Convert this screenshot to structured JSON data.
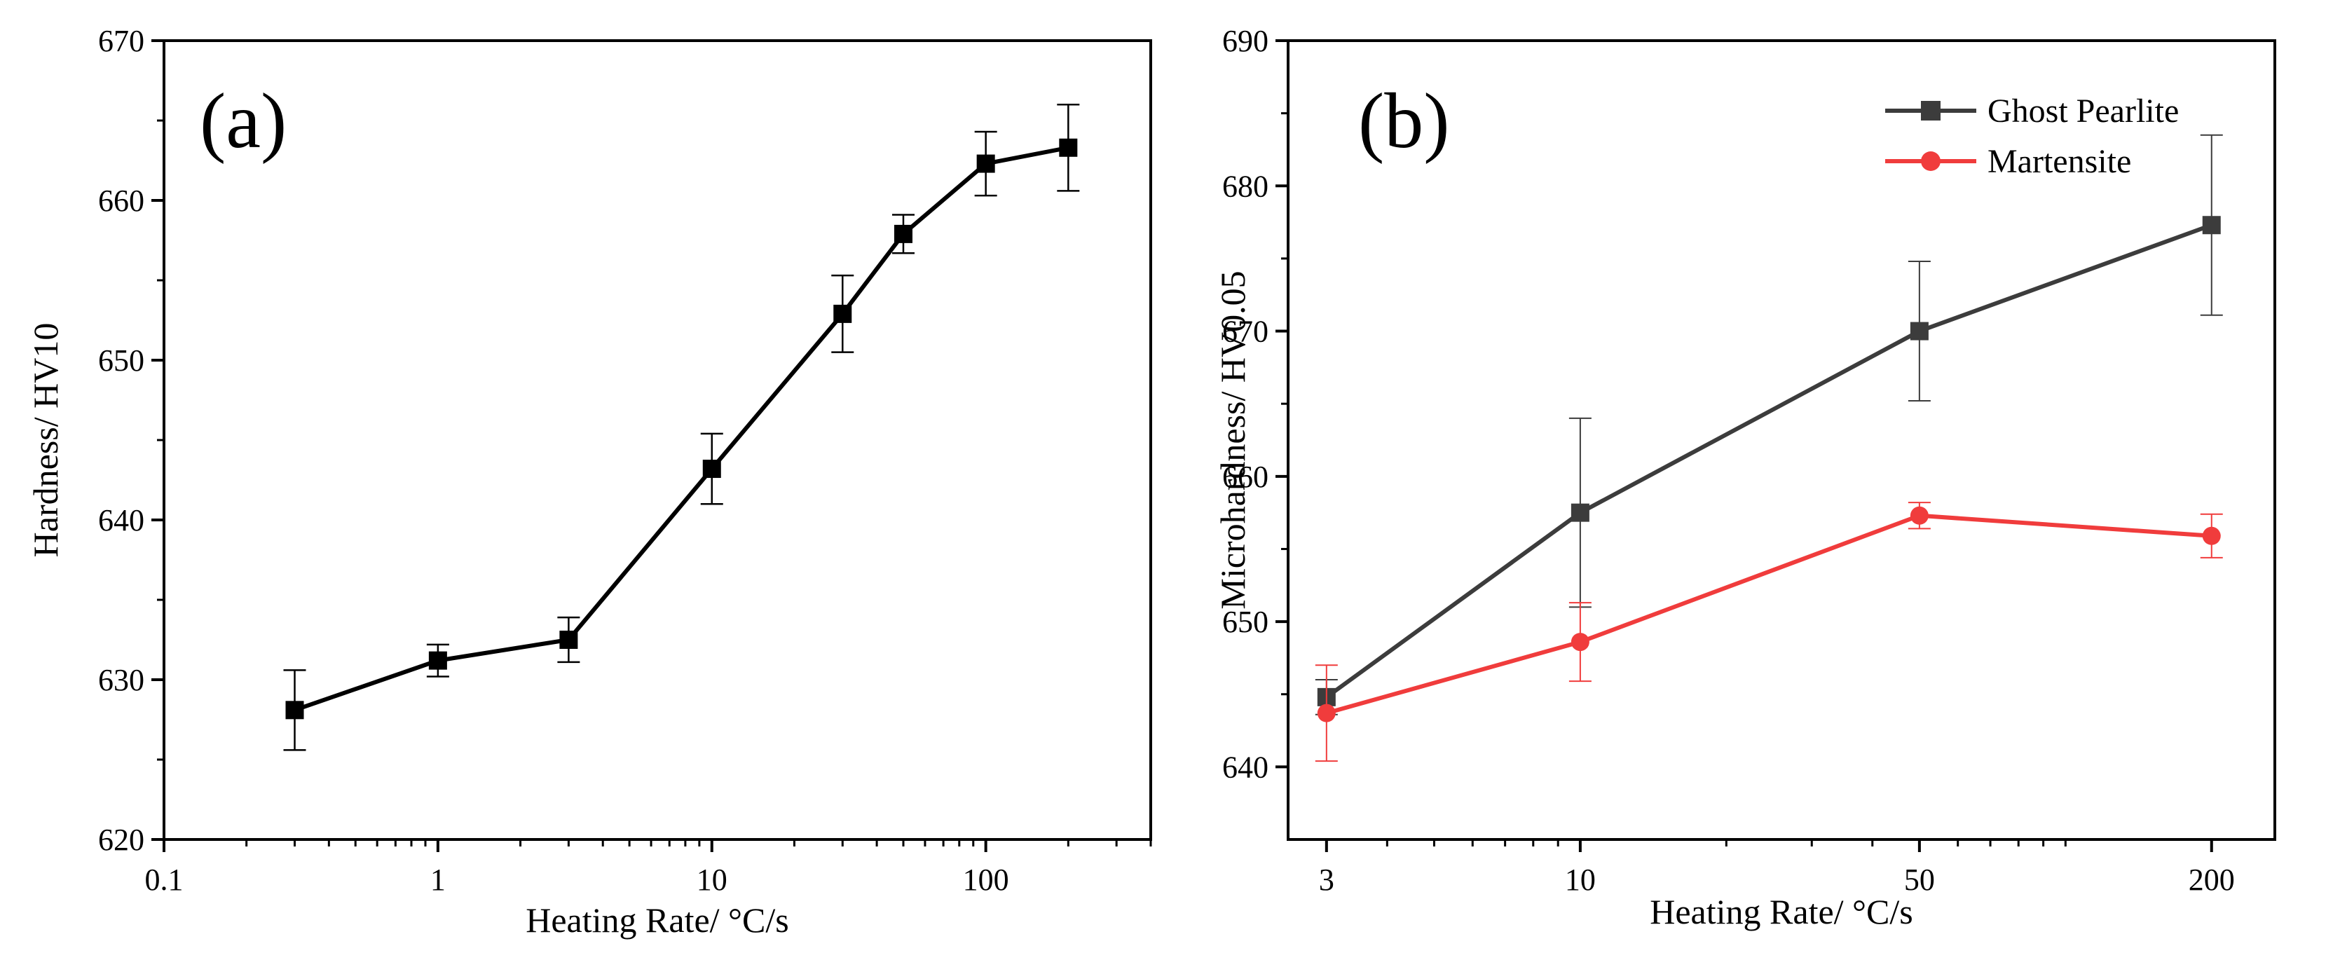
{
  "chart_data": [
    {
      "type": "line",
      "panel_label": "(a)",
      "xlabel": "Heating Rate/ °C/s",
      "ylabel": "Hardness/ HV10",
      "x_scale": "log",
      "xlim": [
        0.1,
        400
      ],
      "ylim": [
        620,
        670
      ],
      "x_ticks": [
        0.1,
        1,
        10,
        100
      ],
      "x_tick_labels": [
        "0.1",
        "1",
        "10",
        "100"
      ],
      "y_ticks": [
        620,
        630,
        640,
        650,
        660,
        670
      ],
      "y_tick_labels": [
        "620",
        "630",
        "640",
        "650",
        "660",
        "670"
      ],
      "series": [
        {
          "name": "Hardness",
          "color": "#000000",
          "marker": "square",
          "x": [
            0.3,
            1,
            3,
            10,
            30,
            50,
            100,
            200
          ],
          "y": [
            628.1,
            631.2,
            632.5,
            643.2,
            652.9,
            657.9,
            662.3,
            663.3
          ],
          "err": [
            2.5,
            1.0,
            1.4,
            2.2,
            2.4,
            1.2,
            2.0,
            2.7
          ]
        }
      ]
    },
    {
      "type": "line",
      "panel_label": "(b)",
      "xlabel": "Heating Rate/ °C/s",
      "ylabel": "Microhardness/ HV0.05",
      "x_scale": "log",
      "xlim": [
        2.5,
        270
      ],
      "ylim": [
        635,
        690
      ],
      "x_ticks": [
        3,
        10,
        50,
        200
      ],
      "x_tick_labels": [
        "3",
        "10",
        "50",
        "200"
      ],
      "y_ticks": [
        640,
        650,
        660,
        670,
        680,
        690
      ],
      "y_tick_labels": [
        "640",
        "650",
        "660",
        "670",
        "680",
        "690"
      ],
      "legend_position": "top-right",
      "series": [
        {
          "name": "Ghost Pearlite",
          "color": "#3c3c3c",
          "marker": "square",
          "x": [
            3,
            10,
            50,
            200
          ],
          "y": [
            644.8,
            657.5,
            670.0,
            677.3
          ],
          "err": [
            1.2,
            6.5,
            4.8,
            6.2
          ]
        },
        {
          "name": "Martensite",
          "color": "#f03c3c",
          "marker": "circle",
          "x": [
            3,
            10,
            50,
            200
          ],
          "y": [
            643.7,
            648.6,
            657.3,
            655.9
          ],
          "err": [
            3.3,
            2.7,
            0.9,
            1.5
          ]
        }
      ]
    }
  ]
}
